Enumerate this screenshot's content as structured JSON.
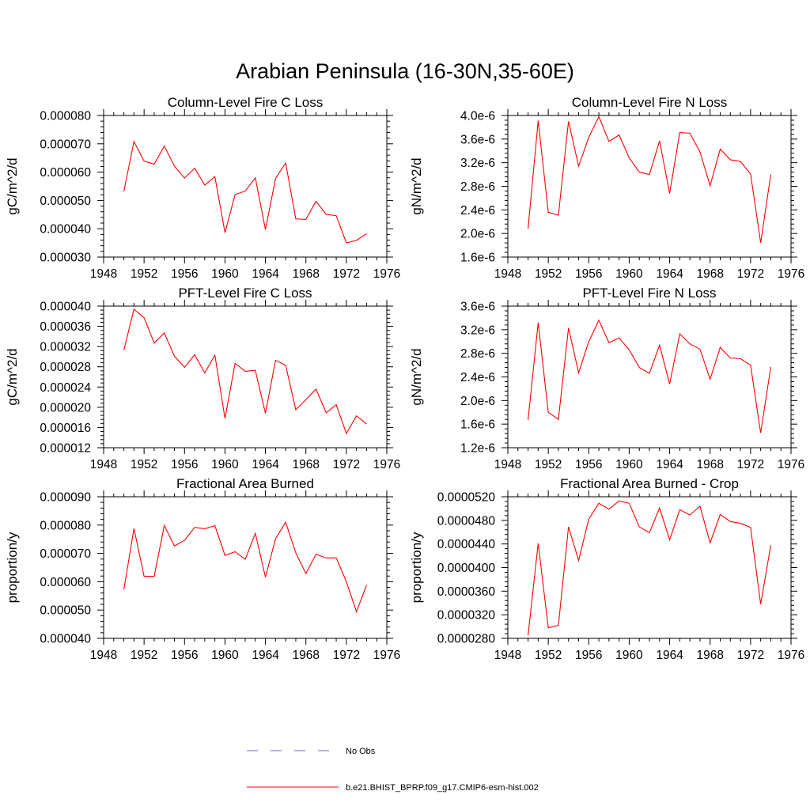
{
  "title": "Arabian Peninsula (16-30N,35-60E)",
  "colors": {
    "model_line": "#ff0000",
    "obs_line": "#6a6acd",
    "axis": "#000000"
  },
  "legend": [
    {
      "label": "No Obs",
      "style": "dashed",
      "color": "#6a6acd"
    },
    {
      "label": "b.e21.BHIST_BPRP.f09_g17.CMIP6-esm-hist.002",
      "style": "solid",
      "color": "#ff0000"
    }
  ],
  "chart_data": [
    {
      "type": "line",
      "title": "Column-Level Fire C Loss",
      "ylabel": "gC/m^2/d",
      "xlim": [
        1948,
        1976
      ],
      "ylim": [
        3e-05,
        8e-05
      ],
      "xticks": [
        "1948",
        "1952",
        "1956",
        "1960",
        "1964",
        "1968",
        "1972",
        "1976"
      ],
      "yticks": [
        "0.000030",
        "0.000040",
        "0.000050",
        "0.000060",
        "0.000070",
        "0.000080"
      ],
      "x": [
        1950,
        1951,
        1952,
        1953,
        1954,
        1955,
        1956,
        1957,
        1958,
        1959,
        1960,
        1961,
        1962,
        1963,
        1964,
        1965,
        1966,
        1967,
        1968,
        1969,
        1970,
        1971,
        1972,
        1973,
        1974
      ],
      "series": [
        {
          "values": [
            5.32e-05,
            7.08e-05,
            6.39e-05,
            6.28e-05,
            6.92e-05,
            6.21e-05,
            5.79e-05,
            6.14e-05,
            5.54e-05,
            5.84e-05,
            3.86e-05,
            5.21e-05,
            5.33e-05,
            5.8e-05,
            3.97e-05,
            5.78e-05,
            6.32e-05,
            4.35e-05,
            4.33e-05,
            4.97e-05,
            4.51e-05,
            4.46e-05,
            3.5e-05,
            3.59e-05,
            3.83e-05
          ]
        }
      ]
    },
    {
      "type": "line",
      "title": "Column-Level Fire N Loss",
      "ylabel": "gN/m^2/d",
      "xlim": [
        1948,
        1976
      ],
      "ylim": [
        1.6e-06,
        4e-06
      ],
      "xticks": [
        "1948",
        "1952",
        "1956",
        "1960",
        "1964",
        "1968",
        "1972",
        "1976"
      ],
      "yticks": [
        "1.6e-6",
        "2.0e-6",
        "2.4e-6",
        "2.8e-6",
        "3.2e-6",
        "3.6e-6",
        "4.0e-6"
      ],
      "x": [
        1950,
        1951,
        1952,
        1953,
        1954,
        1955,
        1956,
        1957,
        1958,
        1959,
        1960,
        1961,
        1962,
        1963,
        1964,
        1965,
        1966,
        1967,
        1968,
        1969,
        1970,
        1971,
        1972,
        1973,
        1974
      ],
      "series": [
        {
          "values": [
            2.08e-06,
            3.91e-06,
            2.36e-06,
            2.31e-06,
            3.9e-06,
            3.14e-06,
            3.63e-06,
            3.98e-06,
            3.56e-06,
            3.67e-06,
            3.28e-06,
            3.04e-06,
            3e-06,
            3.57e-06,
            2.68e-06,
            3.71e-06,
            3.7e-06,
            3.38e-06,
            2.81e-06,
            3.43e-06,
            3.25e-06,
            3.22e-06,
            3.01e-06,
            1.84e-06,
            3e-06
          ]
        }
      ]
    },
    {
      "type": "line",
      "title": "PFT-Level Fire C Loss",
      "ylabel": "gC/m^2/d",
      "xlim": [
        1948,
        1976
      ],
      "ylim": [
        1.2e-05,
        4e-05
      ],
      "xticks": [
        "1948",
        "1952",
        "1956",
        "1960",
        "1964",
        "1968",
        "1972",
        "1976"
      ],
      "yticks": [
        "0.000012",
        "0.000016",
        "0.000020",
        "0.000024",
        "0.000028",
        "0.000032",
        "0.000036",
        "0.000040"
      ],
      "x": [
        1950,
        1951,
        1952,
        1953,
        1954,
        1955,
        1956,
        1957,
        1958,
        1959,
        1960,
        1961,
        1962,
        1963,
        1964,
        1965,
        1966,
        1967,
        1968,
        1969,
        1970,
        1971,
        1972,
        1973,
        1974
      ],
      "series": [
        {
          "values": [
            3.13e-05,
            3.94e-05,
            3.77e-05,
            3.27e-05,
            3.47e-05,
            3.01e-05,
            2.79e-05,
            3.04e-05,
            2.68e-05,
            3.03e-05,
            1.78e-05,
            2.87e-05,
            2.71e-05,
            2.73e-05,
            1.88e-05,
            2.93e-05,
            2.83e-05,
            1.95e-05,
            2.15e-05,
            2.36e-05,
            1.89e-05,
            2.05e-05,
            1.48e-05,
            1.83e-05,
            1.67e-05
          ]
        }
      ]
    },
    {
      "type": "line",
      "title": "PFT-Level Fire N Loss",
      "ylabel": "gN/m^2/d",
      "xlim": [
        1948,
        1976
      ],
      "ylim": [
        1.2e-06,
        3.6e-06
      ],
      "xticks": [
        "1948",
        "1952",
        "1956",
        "1960",
        "1964",
        "1968",
        "1972",
        "1976"
      ],
      "yticks": [
        "1.2e-6",
        "1.6e-6",
        "2.0e-6",
        "2.4e-6",
        "2.8e-6",
        "3.2e-6",
        "3.6e-6"
      ],
      "x": [
        1950,
        1951,
        1952,
        1953,
        1954,
        1955,
        1956,
        1957,
        1958,
        1959,
        1960,
        1961,
        1962,
        1963,
        1964,
        1965,
        1966,
        1967,
        1968,
        1969,
        1970,
        1971,
        1972,
        1973,
        1974
      ],
      "series": [
        {
          "values": [
            1.67e-06,
            3.32e-06,
            1.8e-06,
            1.68e-06,
            3.23e-06,
            2.47e-06,
            3e-06,
            3.36e-06,
            2.98e-06,
            3.06e-06,
            2.86e-06,
            2.56e-06,
            2.46e-06,
            2.94e-06,
            2.28e-06,
            3.13e-06,
            2.96e-06,
            2.87e-06,
            2.36e-06,
            2.9e-06,
            2.72e-06,
            2.71e-06,
            2.6e-06,
            1.45e-06,
            2.57e-06
          ]
        }
      ]
    },
    {
      "type": "line",
      "title": "Fractional Area Burned",
      "ylabel": "proportion/y",
      "xlim": [
        1948,
        1976
      ],
      "ylim": [
        4e-05,
        9e-05
      ],
      "xticks": [
        "1948",
        "1952",
        "1956",
        "1960",
        "1964",
        "1968",
        "1972",
        "1976"
      ],
      "yticks": [
        "0.000040",
        "0.000050",
        "0.000060",
        "0.000070",
        "0.000080",
        "0.000090"
      ],
      "x": [
        1950,
        1951,
        1952,
        1953,
        1954,
        1955,
        1956,
        1957,
        1958,
        1959,
        1960,
        1961,
        1962,
        1963,
        1964,
        1965,
        1966,
        1967,
        1968,
        1969,
        1970,
        1971,
        1972,
        1973,
        1974
      ],
      "series": [
        {
          "values": [
            5.72e-05,
            7.88e-05,
            6.19e-05,
            6.19e-05,
            7.99e-05,
            7.26e-05,
            7.46e-05,
            7.92e-05,
            7.87e-05,
            7.98e-05,
            6.93e-05,
            7.06e-05,
            6.79e-05,
            7.71e-05,
            6.16e-05,
            7.52e-05,
            8.1e-05,
            7.02e-05,
            6.29e-05,
            6.97e-05,
            6.84e-05,
            6.84e-05,
            6e-05,
            4.94e-05,
            5.88e-05
          ]
        }
      ]
    },
    {
      "type": "line",
      "title": "Fractional Area Burned - Crop",
      "ylabel": "proportion/y",
      "xlim": [
        1948,
        1976
      ],
      "ylim": [
        2.8e-05,
        5.2e-05
      ],
      "xticks": [
        "1948",
        "1952",
        "1956",
        "1960",
        "1964",
        "1968",
        "1972",
        "1976"
      ],
      "yticks": [
        "0.0000280",
        "0.0000320",
        "0.0000360",
        "0.0000400",
        "0.0000440",
        "0.0000480",
        "0.0000520"
      ],
      "x": [
        1950,
        1951,
        1952,
        1953,
        1954,
        1955,
        1956,
        1957,
        1958,
        1959,
        1960,
        1961,
        1962,
        1963,
        1964,
        1965,
        1966,
        1967,
        1968,
        1969,
        1970,
        1971,
        1972,
        1973,
        1974
      ],
      "series": [
        {
          "values": [
            2.85e-05,
            4.41e-05,
            2.98e-05,
            3.02e-05,
            4.69e-05,
            4.12e-05,
            4.82e-05,
            5.09e-05,
            4.99e-05,
            5.13e-05,
            5.09e-05,
            4.69e-05,
            4.59e-05,
            5.01e-05,
            4.47e-05,
            4.98e-05,
            4.89e-05,
            5.04e-05,
            4.42e-05,
            4.9e-05,
            4.78e-05,
            4.75e-05,
            4.68e-05,
            3.38e-05,
            4.38e-05
          ]
        }
      ]
    }
  ]
}
